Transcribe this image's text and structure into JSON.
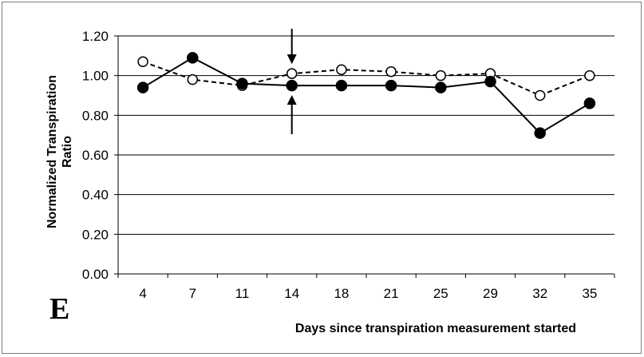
{
  "chart_data": {
    "type": "line",
    "panel_label": "E",
    "categories": [
      "4",
      "7",
      "11",
      "14",
      "18",
      "21",
      "25",
      "29",
      "32",
      "35"
    ],
    "xlabel": "Days since transpiration measurement started",
    "ylabel_lines": [
      "Normalized Transpiration",
      "Ratio"
    ],
    "ylim": [
      0,
      1.2
    ],
    "yticks": [
      "0.00",
      "0.20",
      "0.40",
      "0.60",
      "0.80",
      "1.00",
      "1.20"
    ],
    "ytick_values": [
      0,
      0.2,
      0.4,
      0.6,
      0.8,
      1.0,
      1.2
    ],
    "grid": true,
    "series": [
      {
        "marker": "filled-circle",
        "line_style": "solid",
        "values": [
          0.94,
          1.09,
          0.96,
          0.95,
          0.95,
          0.95,
          0.94,
          0.97,
          0.71,
          0.86
        ]
      },
      {
        "marker": "open-circle",
        "line_style": "dashed",
        "values": [
          1.07,
          0.98,
          0.95,
          1.01,
          1.03,
          1.02,
          1.0,
          1.01,
          0.9,
          1.0
        ]
      }
    ],
    "annotations": [
      {
        "type": "arrow-pair",
        "category": "14",
        "description": "arrows pointing toward data at day 14"
      }
    ]
  }
}
